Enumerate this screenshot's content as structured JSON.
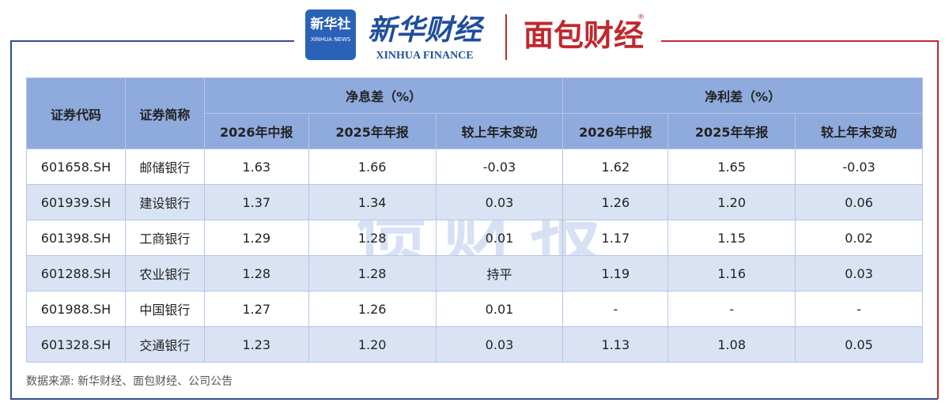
{
  "header": {
    "xinhua_logo": "新华社",
    "xinhua_logo_en": "XINHUA NEWS",
    "finance_title": "新华财经",
    "finance_title_en": "XINHUA FINANCE",
    "partner": "面包财经",
    "partner_mark": "®"
  },
  "watermark": "债财报",
  "table": {
    "col_headers": [
      "证券代码",
      "证券简称"
    ],
    "groups": [
      {
        "title": "净息差（%）",
        "cols": [
          "2026年中报",
          "2025年年报",
          "较上年末变动"
        ]
      },
      {
        "title": "净利差（%）",
        "cols": [
          "2026年中报",
          "2025年年报",
          "较上年末变动"
        ]
      }
    ],
    "rows": [
      [
        "601658.SH",
        "邮储银行",
        "1.63",
        "1.66",
        "-0.03",
        "1.62",
        "1.65",
        "-0.03"
      ],
      [
        "601939.SH",
        "建设银行",
        "1.37",
        "1.34",
        "0.03",
        "1.26",
        "1.20",
        "0.06"
      ],
      [
        "601398.SH",
        "工商银行",
        "1.29",
        "1.28",
        "0.01",
        "1.17",
        "1.15",
        "0.02"
      ],
      [
        "601288.SH",
        "农业银行",
        "1.28",
        "1.28",
        "持平",
        "1.19",
        "1.16",
        "0.03"
      ],
      [
        "601988.SH",
        "中国银行",
        "1.27",
        "1.26",
        "0.01",
        "-",
        "-",
        "-"
      ],
      [
        "601328.SH",
        "交通银行",
        "1.23",
        "1.20",
        "0.03",
        "1.13",
        "1.08",
        "0.05"
      ]
    ]
  },
  "source": "数据来源: 新华财经、面包财经、公司公告"
}
